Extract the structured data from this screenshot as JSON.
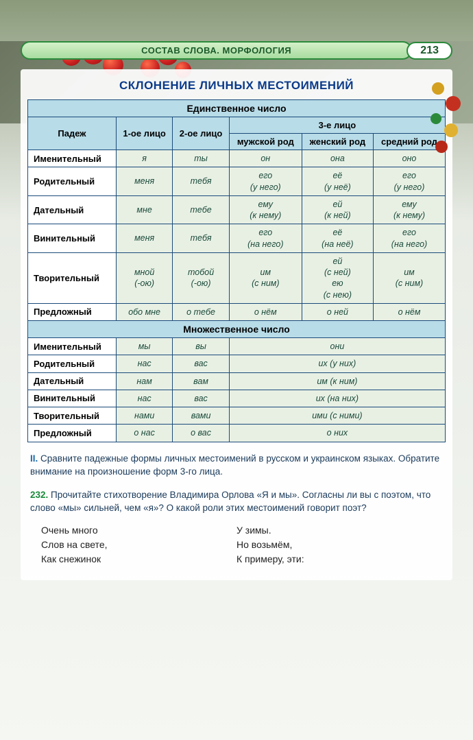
{
  "header": {
    "chapter": "СОСТАВ СЛОВА. МОРФОЛОГИЯ",
    "page": "213"
  },
  "title": "СКЛОНЕНИЕ ЛИЧНЫХ МЕСТОИМЕНИЙ",
  "table": {
    "section1": "Единственное число",
    "col_case": "Падеж",
    "col_1p": "1-ое лицо",
    "col_2p": "2-ое лицо",
    "col_3p": "3-е лицо",
    "col_m": "мужской род",
    "col_f": "женский род",
    "col_n": "средний род",
    "rows_sg": [
      {
        "case": "Именительный",
        "c1": "я",
        "c2": "ты",
        "m": "он",
        "f": "она",
        "n": "оно"
      },
      {
        "case": "Родительный",
        "c1": "меня",
        "c2": "тебя",
        "m": "его\n(у него)",
        "f": "её\n(у неё)",
        "n": "его\n(у него)"
      },
      {
        "case": "Дательный",
        "c1": "мне",
        "c2": "тебе",
        "m": "ему\n(к нему)",
        "f": "ей\n(к ней)",
        "n": "ему\n(к нему)"
      },
      {
        "case": "Винительный",
        "c1": "меня",
        "c2": "тебя",
        "m": "его\n(на него)",
        "f": "её\n(на неё)",
        "n": "его\n(на него)"
      },
      {
        "case": "Творительный",
        "c1": "мной\n(-ою)",
        "c2": "тобой\n(-ою)",
        "m": "им\n(с ним)",
        "f": "ей\n(с ней)\nею\n(с нею)",
        "n": "им\n(с ним)"
      },
      {
        "case": "Предложный",
        "c1": "обо мне",
        "c2": "о тебе",
        "m": "о нём",
        "f": "о ней",
        "n": "о нём"
      }
    ],
    "section2": "Множественное число",
    "rows_pl": [
      {
        "case": "Именительный",
        "c1": "мы",
        "c2": "вы",
        "c3": "они"
      },
      {
        "case": "Родительный",
        "c1": "нас",
        "c2": "вас",
        "c3": "их (у них)"
      },
      {
        "case": "Дательный",
        "c1": "нам",
        "c2": "вам",
        "c3": "им (к ним)"
      },
      {
        "case": "Винительный",
        "c1": "нас",
        "c2": "вас",
        "c3": "их (на них)"
      },
      {
        "case": "Творительный",
        "c1": "нами",
        "c2": "вами",
        "c3": "ими (с ними)"
      },
      {
        "case": "Предложный",
        "c1": "о нас",
        "c2": "о вас",
        "c3": "о них"
      }
    ]
  },
  "exercise2": {
    "num": "II.",
    "text": "Сравните падежные формы личных местоимений в русском и украинском языках. Обратите внимание на произношение форм 3-го лица."
  },
  "exercise232": {
    "num": "232.",
    "text": "Прочитайте стихотворение Владимира Орлова «Я и мы». Согласны ли вы с поэтом, что слово «мы» сильней, чем «я»? О какой роли этих местоимений говорит поэт?"
  },
  "poem": {
    "left": [
      "Очень много",
      "Слов на свете,",
      "Как снежинок"
    ],
    "right": [
      "У зимы.",
      "Но возьмём,",
      "К примеру, эти:"
    ]
  },
  "colors": {
    "header_green": "#2a8a3a",
    "table_border": "#1a4a7a",
    "hdr_blue": "#b8dce8",
    "cell_green": "#e8f0e4",
    "title_blue": "#0a3a8a"
  }
}
